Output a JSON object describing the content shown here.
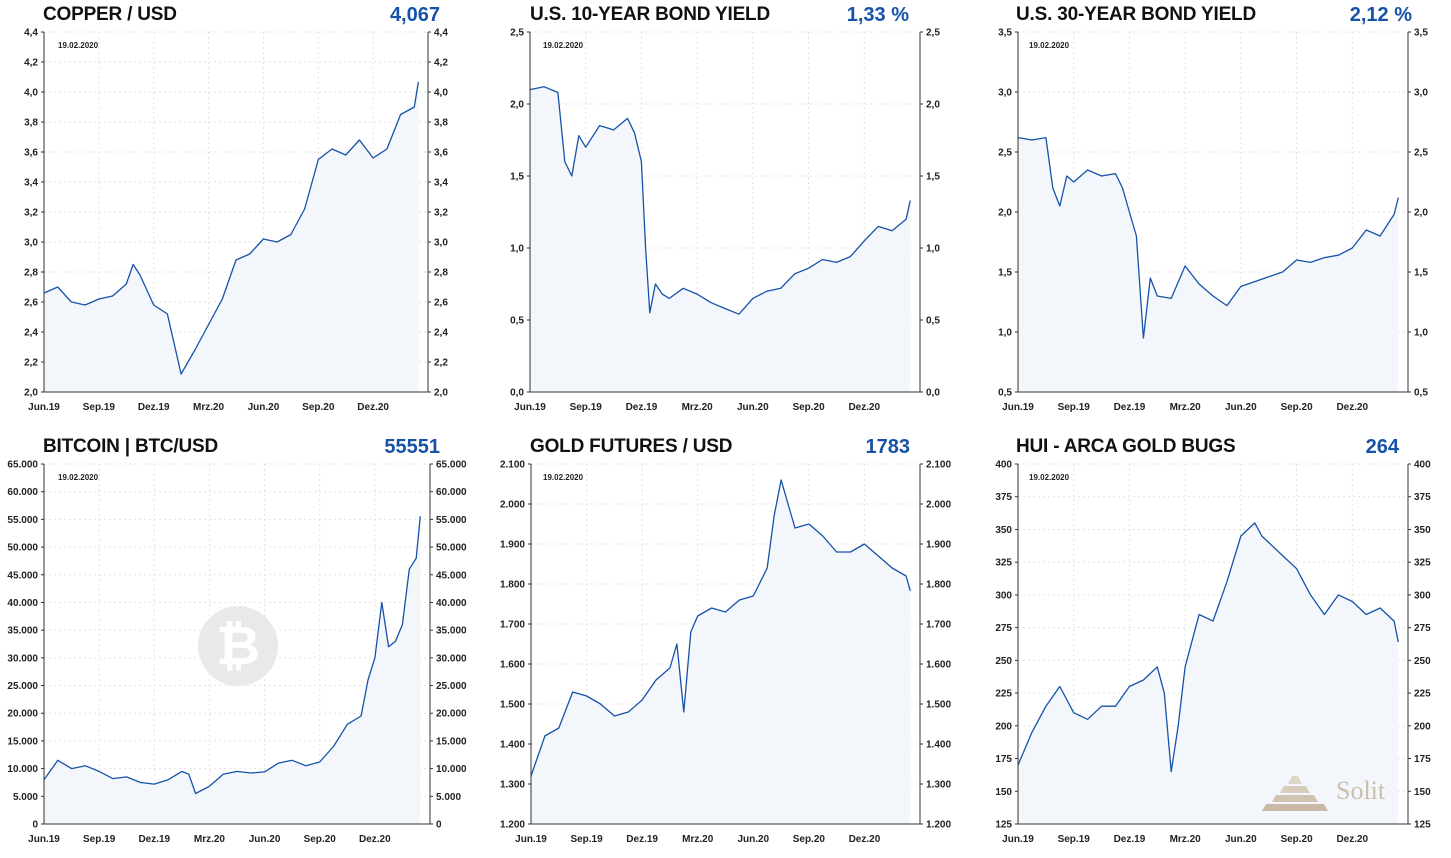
{
  "date_label": "19.02.2020",
  "watermark": {
    "brand": "Solit",
    "bitcoin_icon": "bitcoin-logo-icon"
  },
  "colors": {
    "line": "#1652a8",
    "fill": "#f3f6fb",
    "value": "#1652a8"
  },
  "chart_data": [
    {
      "type": "line",
      "title": "COPPER / USD",
      "value_label": "4,067",
      "x_labels": [
        "Jun.19",
        "Sep.19",
        "Dez.19",
        "Mrz.20",
        "Jun.20",
        "Sep.20",
        "Dez.20"
      ],
      "ylim": [
        2.0,
        4.4
      ],
      "y_ticks": [
        "2,0",
        "2,2",
        "2,4",
        "2,6",
        "2,8",
        "3,0",
        "3,2",
        "3,4",
        "3,6",
        "3,8",
        "4,0",
        "4,2",
        "4,4"
      ],
      "x": [
        0,
        1,
        2,
        3,
        4,
        5,
        6,
        6.5,
        7,
        8,
        9,
        10,
        11,
        12,
        13,
        14,
        15,
        16,
        17,
        18,
        19,
        19.7,
        20,
        21,
        22,
        23,
        24,
        25,
        26,
        27,
        27.3
      ],
      "y": [
        2.66,
        2.7,
        2.6,
        2.58,
        2.62,
        2.64,
        2.72,
        2.85,
        2.78,
        2.58,
        2.52,
        2.12,
        2.28,
        2.45,
        2.62,
        2.88,
        2.92,
        3.02,
        3.0,
        3.05,
        3.22,
        3.45,
        3.55,
        3.62,
        3.58,
        3.68,
        3.56,
        3.62,
        3.85,
        3.9,
        4.067
      ],
      "grid": true
    },
    {
      "type": "line",
      "title": "U.S. 10-YEAR BOND YIELD",
      "value_label": "1,33 %",
      "x_labels": [
        "Jun.19",
        "Sep.19",
        "Dez.19",
        "Mrz.20",
        "Jun.20",
        "Sep.20",
        "Dez.20"
      ],
      "ylim": [
        0.0,
        2.5
      ],
      "y_ticks": [
        "0,0",
        "0,5",
        "1,0",
        "1,5",
        "2,0",
        "2,5"
      ],
      "x": [
        0,
        1,
        2,
        2.5,
        3,
        3.5,
        4,
        5,
        6,
        7,
        7.5,
        8,
        8.3,
        8.6,
        9,
        9.5,
        10,
        11,
        12,
        13,
        14,
        15,
        16,
        17,
        18,
        19,
        20,
        21,
        22,
        23,
        24,
        25,
        26,
        27,
        27.3
      ],
      "y": [
        2.1,
        2.12,
        2.08,
        1.6,
        1.5,
        1.78,
        1.7,
        1.85,
        1.82,
        1.9,
        1.8,
        1.6,
        1.0,
        0.55,
        0.75,
        0.68,
        0.65,
        0.72,
        0.68,
        0.62,
        0.58,
        0.54,
        0.65,
        0.7,
        0.72,
        0.82,
        0.86,
        0.92,
        0.9,
        0.94,
        1.05,
        1.15,
        1.12,
        1.2,
        1.33
      ],
      "grid": true
    },
    {
      "type": "line",
      "title": "U.S. 30-YEAR BOND YIELD",
      "value_label": "2,12 %",
      "x_labels": [
        "Jun.19",
        "Sep.19",
        "Dez.19",
        "Mrz.20",
        "Jun.20",
        "Sep.20",
        "Dez.20"
      ],
      "ylim": [
        0.5,
        3.5
      ],
      "y_ticks": [
        "0,5",
        "1,0",
        "1,5",
        "2,0",
        "2,5",
        "3,0",
        "3,5"
      ],
      "x": [
        0,
        1,
        2,
        2.5,
        3,
        3.5,
        4,
        5,
        6,
        7,
        7.5,
        8,
        8.5,
        9,
        9.5,
        10,
        11,
        12,
        13,
        14,
        15,
        16,
        17,
        18,
        19,
        20,
        21,
        22,
        23,
        24,
        25,
        26,
        27,
        27.3
      ],
      "y": [
        2.62,
        2.6,
        2.62,
        2.2,
        2.05,
        2.3,
        2.25,
        2.35,
        2.3,
        2.32,
        2.2,
        2.0,
        1.8,
        0.95,
        1.45,
        1.3,
        1.28,
        1.55,
        1.4,
        1.3,
        1.22,
        1.38,
        1.42,
        1.46,
        1.5,
        1.6,
        1.58,
        1.62,
        1.64,
        1.7,
        1.85,
        1.8,
        1.98,
        2.12
      ],
      "grid": true
    },
    {
      "type": "line",
      "title": "BITCOIN | BTC/USD",
      "value_label": "55551",
      "x_labels": [
        "Jun.19",
        "Sep.19",
        "Dez.19",
        "Mrz.20",
        "Jun.20",
        "Sep.20",
        "Dez.20"
      ],
      "ylim": [
        0,
        65000
      ],
      "y_ticks": [
        "0",
        "5.000",
        "10.000",
        "15.000",
        "20.000",
        "25.000",
        "30.000",
        "35.000",
        "40.000",
        "45.000",
        "50.000",
        "55.000",
        "60.000",
        "65.000"
      ],
      "x": [
        0,
        1,
        2,
        3,
        4,
        5,
        6,
        7,
        8,
        9,
        10,
        10.5,
        11,
        12,
        13,
        14,
        15,
        16,
        17,
        18,
        19,
        20,
        21,
        22,
        23,
        23.5,
        24,
        24.5,
        25,
        25.5,
        26,
        26.5,
        27,
        27.3
      ],
      "y": [
        8000,
        11500,
        10000,
        10500,
        9500,
        8200,
        8500,
        7500,
        7200,
        8000,
        9500,
        9000,
        5500,
        6800,
        9000,
        9500,
        9200,
        9400,
        11000,
        11500,
        10500,
        11200,
        14000,
        18000,
        19500,
        26000,
        30000,
        40000,
        32000,
        33000,
        36000,
        46000,
        48000,
        55551
      ],
      "grid": true
    },
    {
      "type": "line",
      "title": "GOLD FUTURES / USD",
      "value_label": "1783",
      "x_labels": [
        "Jun.19",
        "Sep.19",
        "Dez.19",
        "Mrz.20",
        "Jun.20",
        "Sep.20",
        "Dez.20"
      ],
      "ylim": [
        1200,
        2100
      ],
      "y_ticks": [
        "1.200",
        "1.300",
        "1.400",
        "1.500",
        "1.600",
        "1.700",
        "1.800",
        "1.900",
        "2.000",
        "2.100"
      ],
      "x": [
        0,
        1,
        2,
        3,
        4,
        5,
        6,
        7,
        8,
        9,
        10,
        10.5,
        11,
        11.5,
        12,
        13,
        14,
        15,
        16,
        17,
        17.5,
        18,
        19,
        20,
        21,
        22,
        23,
        24,
        25,
        26,
        27,
        27.3
      ],
      "y": [
        1320,
        1420,
        1440,
        1530,
        1520,
        1500,
        1470,
        1480,
        1510,
        1560,
        1590,
        1650,
        1480,
        1680,
        1720,
        1740,
        1730,
        1760,
        1770,
        1840,
        1970,
        2060,
        1940,
        1950,
        1920,
        1880,
        1880,
        1900,
        1870,
        1840,
        1820,
        1783
      ],
      "grid": true
    },
    {
      "type": "line",
      "title": "HUI - ARCA GOLD BUGS",
      "value_label": "264",
      "x_labels": [
        "Jun.19",
        "Sep.19",
        "Dez.19",
        "Mrz.20",
        "Jun.20",
        "Sep.20",
        "Dez.20"
      ],
      "ylim": [
        125,
        400
      ],
      "y_ticks": [
        "125",
        "150",
        "175",
        "200",
        "225",
        "250",
        "275",
        "300",
        "325",
        "350",
        "375",
        "400"
      ],
      "x": [
        0,
        1,
        2,
        3,
        4,
        5,
        6,
        7,
        8,
        9,
        10,
        10.5,
        11,
        11.5,
        12,
        13,
        14,
        15,
        16,
        17,
        17.5,
        18,
        19,
        20,
        21,
        22,
        23,
        24,
        25,
        26,
        27,
        27.3
      ],
      "y": [
        170,
        195,
        215,
        230,
        210,
        205,
        215,
        215,
        230,
        235,
        245,
        225,
        165,
        200,
        245,
        285,
        280,
        310,
        345,
        355,
        345,
        340,
        330,
        320,
        300,
        285,
        300,
        295,
        285,
        290,
        280,
        264
      ],
      "grid": true
    }
  ]
}
